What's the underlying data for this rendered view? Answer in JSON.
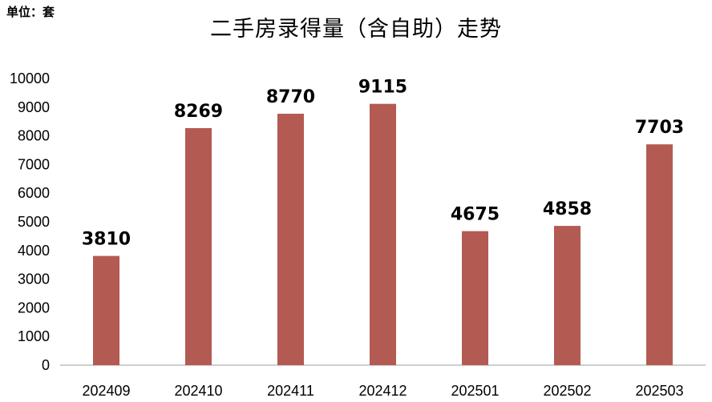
{
  "unit_label": "单位：套",
  "chart_data": {
    "type": "bar",
    "title": "二手房录得量（含自助）走势",
    "xlabel": "",
    "ylabel": "",
    "categories": [
      "202409",
      "202410",
      "202411",
      "202412",
      "202501",
      "202502",
      "202503"
    ],
    "values": [
      3810,
      8269,
      8770,
      9115,
      4675,
      4858,
      7703
    ],
    "ylim": [
      0,
      10000
    ],
    "yticks": [
      0,
      1000,
      2000,
      3000,
      4000,
      5000,
      6000,
      7000,
      8000,
      9000,
      10000
    ],
    "grid": false,
    "legend": "none",
    "data_labels": true,
    "bar_color": "#b35a52",
    "axis_color": "#bfbfbf"
  }
}
